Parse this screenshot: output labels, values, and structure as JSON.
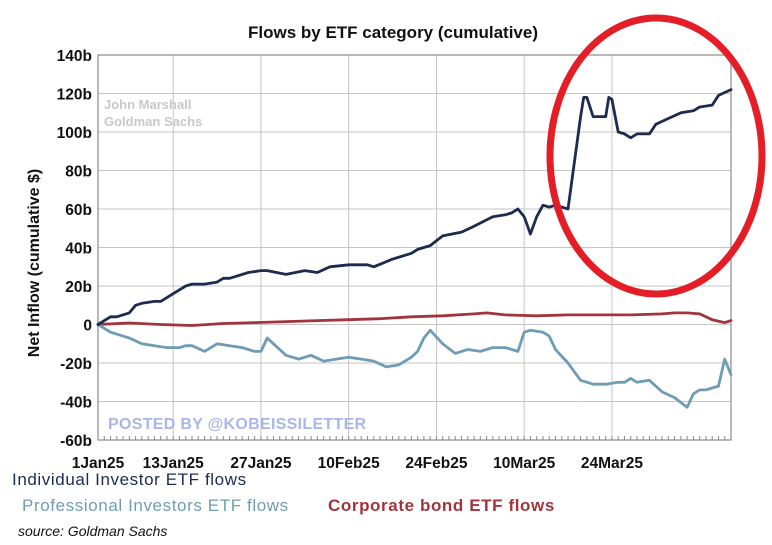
{
  "chart_data": {
    "type": "line",
    "title": "Flows by ETF category (cumulative)",
    "xlabel": "",
    "ylabel": "Net Inflow (cumulative $)",
    "x_tick_labels": [
      "1Jan25",
      "13Jan25",
      "27Jan25",
      "10Feb25",
      "24Feb25",
      "10Mar25",
      "24Mar25"
    ],
    "x_tick_days": [
      0,
      12,
      26,
      40,
      54,
      68,
      82
    ],
    "xlim_days": [
      0,
      101
    ],
    "ylim": [
      -60,
      140
    ],
    "y_ticks": [
      -60,
      -40,
      -20,
      0,
      20,
      40,
      60,
      80,
      100,
      120,
      140
    ],
    "y_tick_labels": [
      "-60b",
      "-40b",
      "-20b",
      "0",
      "20b",
      "40b",
      "60b",
      "80b",
      "100b",
      "120b",
      "140b"
    ],
    "grid": true,
    "series": [
      {
        "name": "Individual Investor ETF flows",
        "color": "#1c2b4f",
        "x": [
          0,
          2,
          3,
          5,
          6,
          7,
          9,
          10,
          12,
          14,
          15,
          17,
          19,
          20,
          21,
          24,
          26,
          27,
          30,
          33,
          35,
          37,
          40,
          43,
          44,
          47,
          50,
          51,
          53,
          55,
          58,
          60,
          63,
          65,
          66,
          67,
          68,
          69,
          70,
          71,
          72,
          73,
          75,
          77,
          77.5,
          78,
          79,
          81,
          81.5,
          82,
          83,
          84,
          85,
          86,
          88,
          89,
          91,
          93,
          95,
          96,
          98,
          99,
          101
        ],
        "values": [
          0,
          4,
          4,
          6,
          10,
          11,
          12,
          12,
          16,
          20,
          21,
          21,
          22,
          24,
          24,
          27,
          28,
          28,
          26,
          28,
          27,
          30,
          31,
          31,
          30,
          34,
          37,
          39,
          41,
          46,
          48,
          51,
          56,
          57,
          58,
          60,
          56,
          47,
          56,
          62,
          61,
          62,
          60,
          108,
          118,
          118,
          108,
          108,
          118,
          117,
          100,
          99,
          97,
          99,
          99,
          104,
          107,
          110,
          111,
          113,
          114,
          119,
          122
        ]
      },
      {
        "name": "Professional Investors ETF flows",
        "color": "#6f9cb5",
        "x": [
          0,
          2,
          4,
          5,
          7,
          9,
          11,
          13,
          14,
          15,
          17,
          19,
          21,
          23,
          25,
          26,
          27,
          28,
          30,
          32,
          34,
          36,
          38,
          40,
          42,
          44,
          46,
          48,
          50,
          51,
          52,
          53,
          55,
          57,
          59,
          61,
          63,
          65,
          67,
          68,
          69,
          71,
          72,
          73,
          75,
          77,
          79,
          81,
          83,
          84,
          85,
          86,
          88,
          90,
          92,
          94,
          95,
          96,
          97,
          99,
          100,
          101
        ],
        "values": [
          0,
          -4,
          -6,
          -7,
          -10,
          -11,
          -12,
          -12,
          -11,
          -11,
          -14,
          -10,
          -11,
          -12,
          -14,
          -14,
          -7,
          -10,
          -16,
          -18,
          -16,
          -19,
          -18,
          -17,
          -18,
          -19,
          -22,
          -21,
          -17,
          -14,
          -7,
          -3,
          -10,
          -15,
          -13,
          -14,
          -12,
          -12,
          -14,
          -4,
          -3,
          -4,
          -6,
          -13,
          -20,
          -29,
          -31,
          -31,
          -30,
          -30,
          -28,
          -30,
          -29,
          -35,
          -38,
          -43,
          -36,
          -34,
          -34,
          -32,
          -18,
          -26
        ]
      },
      {
        "name": "Corporate bond ETF flows",
        "color": "#a3343d",
        "x": [
          0,
          5,
          10,
          15,
          20,
          25,
          30,
          35,
          40,
          45,
          50,
          55,
          60,
          62,
          65,
          70,
          75,
          80,
          85,
          90,
          92,
          94,
          96,
          98,
          100,
          101
        ],
        "values": [
          0,
          0.8,
          0,
          -0.5,
          0.5,
          1,
          1.5,
          2,
          2.5,
          3,
          4,
          4.5,
          5.5,
          6,
          5,
          4.5,
          5,
          5,
          5,
          5.5,
          6,
          6,
          5.5,
          2.5,
          1,
          2
        ]
      }
    ]
  },
  "watermark": {
    "line1": "John Marshall",
    "line2": "Goldman Sachs"
  },
  "posted_by": "POSTED BY @KOBEISSILETTER",
  "annotation": {
    "type": "ellipse",
    "color": "#e41e26"
  },
  "source": "source: Goldman Sachs"
}
